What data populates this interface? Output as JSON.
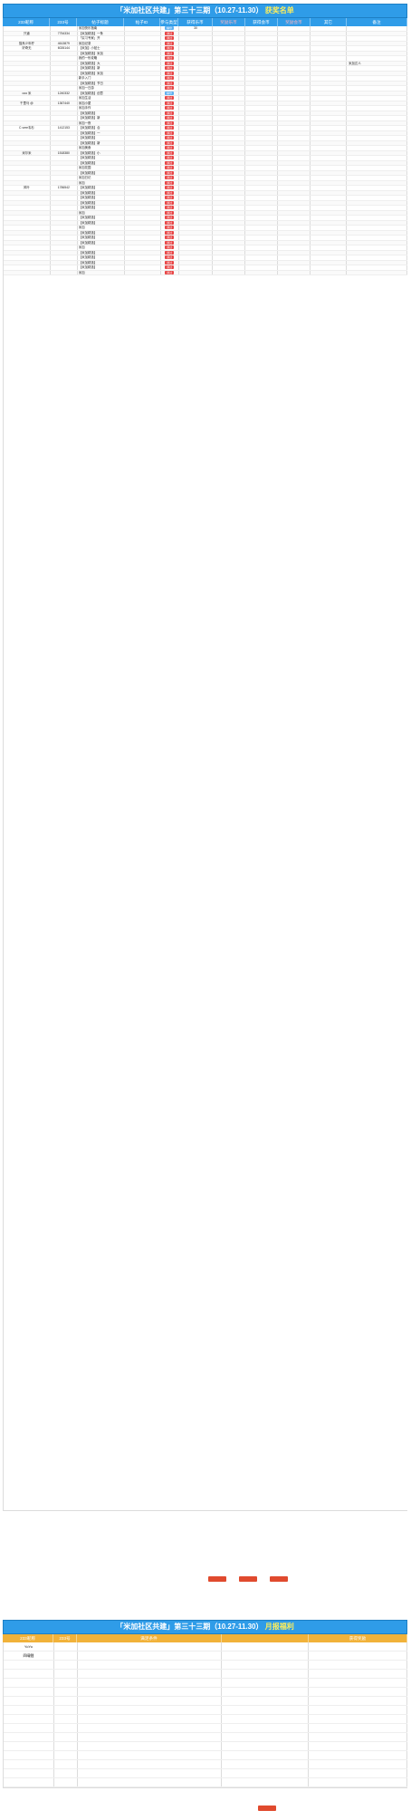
{
  "table1": {
    "title_prefix": "「米加社区共建」第三十三期（10.27-11.30）",
    "title_highlight": "获奖名单",
    "headers": [
      "233昵称",
      "233号",
      "帖子标题",
      "帖子ID",
      "参与类型",
      "获得乐币",
      "奖励乐币",
      "获得会币",
      "奖励会币",
      "其它",
      "备注"
    ],
    "rows": [
      [
        "",
        "",
        "米加快乐指南",
        "",
        "精华",
        "30",
        "",
        "",
        "",
        "",
        ""
      ],
      [
        "只道",
        "7754334",
        "【米加精选】一条",
        "",
        "通过",
        "",
        "",
        "",
        "",
        "",
        ""
      ],
      [
        "",
        "",
        "「实习专家」开",
        "",
        "通过",
        "",
        "",
        "",
        "",
        "",
        ""
      ],
      [
        "猫系少年柠",
        "4613879",
        "米加记录",
        "",
        "通过",
        "",
        "",
        "",
        "",
        "",
        ""
      ],
      [
        "好奇无",
        "6026144",
        "【米加】小贴士",
        "",
        "通过",
        "",
        "",
        "",
        "",
        "",
        ""
      ],
      [
        "",
        "",
        "【米加精选】米加",
        "",
        "通过",
        "",
        "",
        "",
        "",
        "",
        ""
      ],
      [
        "",
        "",
        "我的一份攻略",
        "",
        "通过",
        "",
        "",
        "",
        "",
        "",
        ""
      ],
      [
        "",
        "",
        "【米加精选】大",
        "",
        "通过",
        "",
        "",
        "",
        "",
        "",
        "米加达人"
      ],
      [
        "",
        "",
        "【米加精选】新",
        "",
        "通过",
        "",
        "",
        "",
        "",
        "",
        ""
      ],
      [
        "",
        "",
        "【米加精选】米加",
        "",
        "通过",
        "",
        "",
        "",
        "",
        "",
        ""
      ],
      [
        "",
        "",
        "新手入门",
        "",
        "通过",
        "",
        "",
        "",
        "",
        "",
        ""
      ],
      [
        "",
        "",
        "【米加精选】节日",
        "",
        "通过",
        "",
        "",
        "",
        "",
        "",
        ""
      ],
      [
        "",
        "",
        "米加一日游",
        "",
        "通过",
        "",
        "",
        "",
        "",
        "",
        ""
      ],
      [
        "ooo 米",
        "1240332",
        "【米加精选】创意",
        "",
        "精华",
        "",
        "",
        "",
        "",
        "",
        ""
      ],
      [
        "",
        "",
        "米加生活",
        "",
        "通过",
        "",
        "",
        "",
        "",
        "",
        ""
      ],
      [
        "千里马 @",
        "1367440",
        "米加小屋",
        "",
        "通过",
        "",
        "",
        "",
        "",
        "",
        ""
      ],
      [
        "",
        "",
        "米加手作",
        "",
        "通过",
        "",
        "",
        "",
        "",
        "",
        ""
      ],
      [
        "",
        "",
        "【米加精选】",
        "",
        "通过",
        "",
        "",
        "",
        "",
        "",
        ""
      ],
      [
        "",
        "",
        "【米加精选】新",
        "",
        "通过",
        "",
        "",
        "",
        "",
        "",
        ""
      ],
      [
        "",
        "",
        "米加一夜",
        "",
        "通过",
        "",
        "",
        "",
        "",
        "",
        ""
      ],
      [
        "C.vree韦杉",
        "1412153",
        "【米加精选】合",
        "",
        "通过",
        "",
        "",
        "",
        "",
        "",
        ""
      ],
      [
        "",
        "",
        "【米加精选】一",
        "",
        "通过",
        "",
        "",
        "",
        "",
        "",
        ""
      ],
      [
        "",
        "",
        "【米加精选】",
        "",
        "通过",
        "",
        "",
        "",
        "",
        "",
        ""
      ],
      [
        "",
        "",
        "【米加精选】新",
        "",
        "通过",
        "",
        "",
        "",
        "",
        "",
        ""
      ],
      [
        "",
        "",
        "米加美食",
        "",
        "通过",
        "",
        "",
        "",
        "",
        "",
        ""
      ],
      [
        "米尔米",
        "1518380",
        "【米加精选】小",
        "",
        "通过",
        "",
        "",
        "",
        "",
        "",
        ""
      ],
      [
        "",
        "",
        "【米加精选】",
        "",
        "通过",
        "",
        "",
        "",
        "",
        "",
        ""
      ],
      [
        "",
        "",
        "【米加精选】",
        "",
        "通过",
        "",
        "",
        "",
        "",
        "",
        ""
      ],
      [
        "",
        "",
        "米加花园",
        "",
        "通过",
        "",
        "",
        "",
        "",
        "",
        ""
      ],
      [
        "",
        "",
        "【米加精选】",
        "",
        "通过",
        "",
        "",
        "",
        "",
        "",
        ""
      ],
      [
        "",
        "",
        "米加日记",
        "",
        "通过",
        "",
        "",
        "",
        "",
        "",
        ""
      ],
      [
        "",
        "",
        "米加",
        "",
        "通过",
        "",
        "",
        "",
        "",
        "",
        ""
      ],
      [
        "风叶",
        "1786542",
        "【米加精选】",
        "",
        "通过",
        "",
        "",
        "",
        "",
        "",
        ""
      ],
      [
        "",
        "",
        "【米加精选】",
        "",
        "通过",
        "",
        "",
        "",
        "",
        "",
        ""
      ],
      [
        "",
        "",
        "【米加精选】",
        "",
        "通过",
        "",
        "",
        "",
        "",
        "",
        ""
      ],
      [
        "",
        "",
        "【米加精选】",
        "",
        "通过",
        "",
        "",
        "",
        "",
        "",
        ""
      ],
      [
        "",
        "",
        "【米加精选】",
        "",
        "通过",
        "",
        "",
        "",
        "",
        "",
        ""
      ],
      [
        "",
        "",
        "米加",
        "",
        "通过",
        "",
        "",
        "",
        "",
        "",
        ""
      ],
      [
        "",
        "",
        "【米加精选】",
        "",
        "通过",
        "",
        "",
        "",
        "",
        "",
        ""
      ],
      [
        "",
        "",
        "【米加精选】",
        "",
        "通过",
        "",
        "",
        "",
        "",
        "",
        ""
      ],
      [
        "",
        "",
        "米加",
        "",
        "通过",
        "",
        "",
        "",
        "",
        "",
        ""
      ],
      [
        "",
        "",
        "【米加精选】",
        "",
        "通过",
        "",
        "",
        "",
        "",
        "",
        ""
      ],
      [
        "",
        "",
        "【米加精选】",
        "",
        "通过",
        "",
        "",
        "",
        "",
        "",
        ""
      ],
      [
        "",
        "",
        "【米加精选】",
        "",
        "通过",
        "",
        "",
        "",
        "",
        "",
        ""
      ],
      [
        "",
        "",
        "米加",
        "",
        "通过",
        "",
        "",
        "",
        "",
        "",
        ""
      ],
      [
        "",
        "",
        "【米加精选】",
        "",
        "通过",
        "",
        "",
        "",
        "",
        "",
        ""
      ],
      [
        "",
        "",
        "【米加精选】",
        "",
        "通过",
        "",
        "",
        "",
        "",
        "",
        ""
      ],
      [
        "",
        "",
        "【米加精选】",
        "",
        "通过",
        "",
        "",
        "",
        "",
        "",
        ""
      ],
      [
        "",
        "",
        "【米加精选】",
        "",
        "通过",
        "",
        "",
        "",
        "",
        "",
        ""
      ],
      [
        "",
        "",
        "米加",
        "",
        "通过",
        "",
        "",
        "",
        "",
        "",
        ""
      ]
    ]
  },
  "buttons1": [
    "",
    "",
    ""
  ],
  "table2": {
    "title_prefix": "「米加社区共建」第三十三期（10.27-11.30）",
    "title_highlight": "月报福利",
    "headers": [
      "233昵称",
      "233号",
      "满足条件",
      "",
      "获得奖励"
    ],
    "rows": [
      [
        "YoYo",
        "",
        "",
        "",
        ""
      ],
      [
        "四晴鲤",
        "",
        "",
        "",
        ""
      ],
      [
        "",
        "",
        "",
        "",
        ""
      ],
      [
        "",
        "",
        "",
        "",
        ""
      ],
      [
        "",
        "",
        "",
        "",
        ""
      ],
      [
        "",
        "",
        "",
        "",
        ""
      ],
      [
        "",
        "",
        "",
        "",
        ""
      ],
      [
        "",
        "",
        "",
        "",
        ""
      ],
      [
        "",
        "",
        "",
        "",
        ""
      ],
      [
        "",
        "",
        "",
        "",
        ""
      ],
      [
        "",
        "",
        "",
        "",
        ""
      ],
      [
        "",
        "",
        "",
        "",
        ""
      ],
      [
        "",
        "",
        "",
        "",
        ""
      ],
      [
        "",
        "",
        "",
        "",
        ""
      ],
      [
        "",
        "",
        "",
        "",
        ""
      ],
      [
        "",
        "",
        "",
        "",
        ""
      ]
    ]
  },
  "button2": ""
}
